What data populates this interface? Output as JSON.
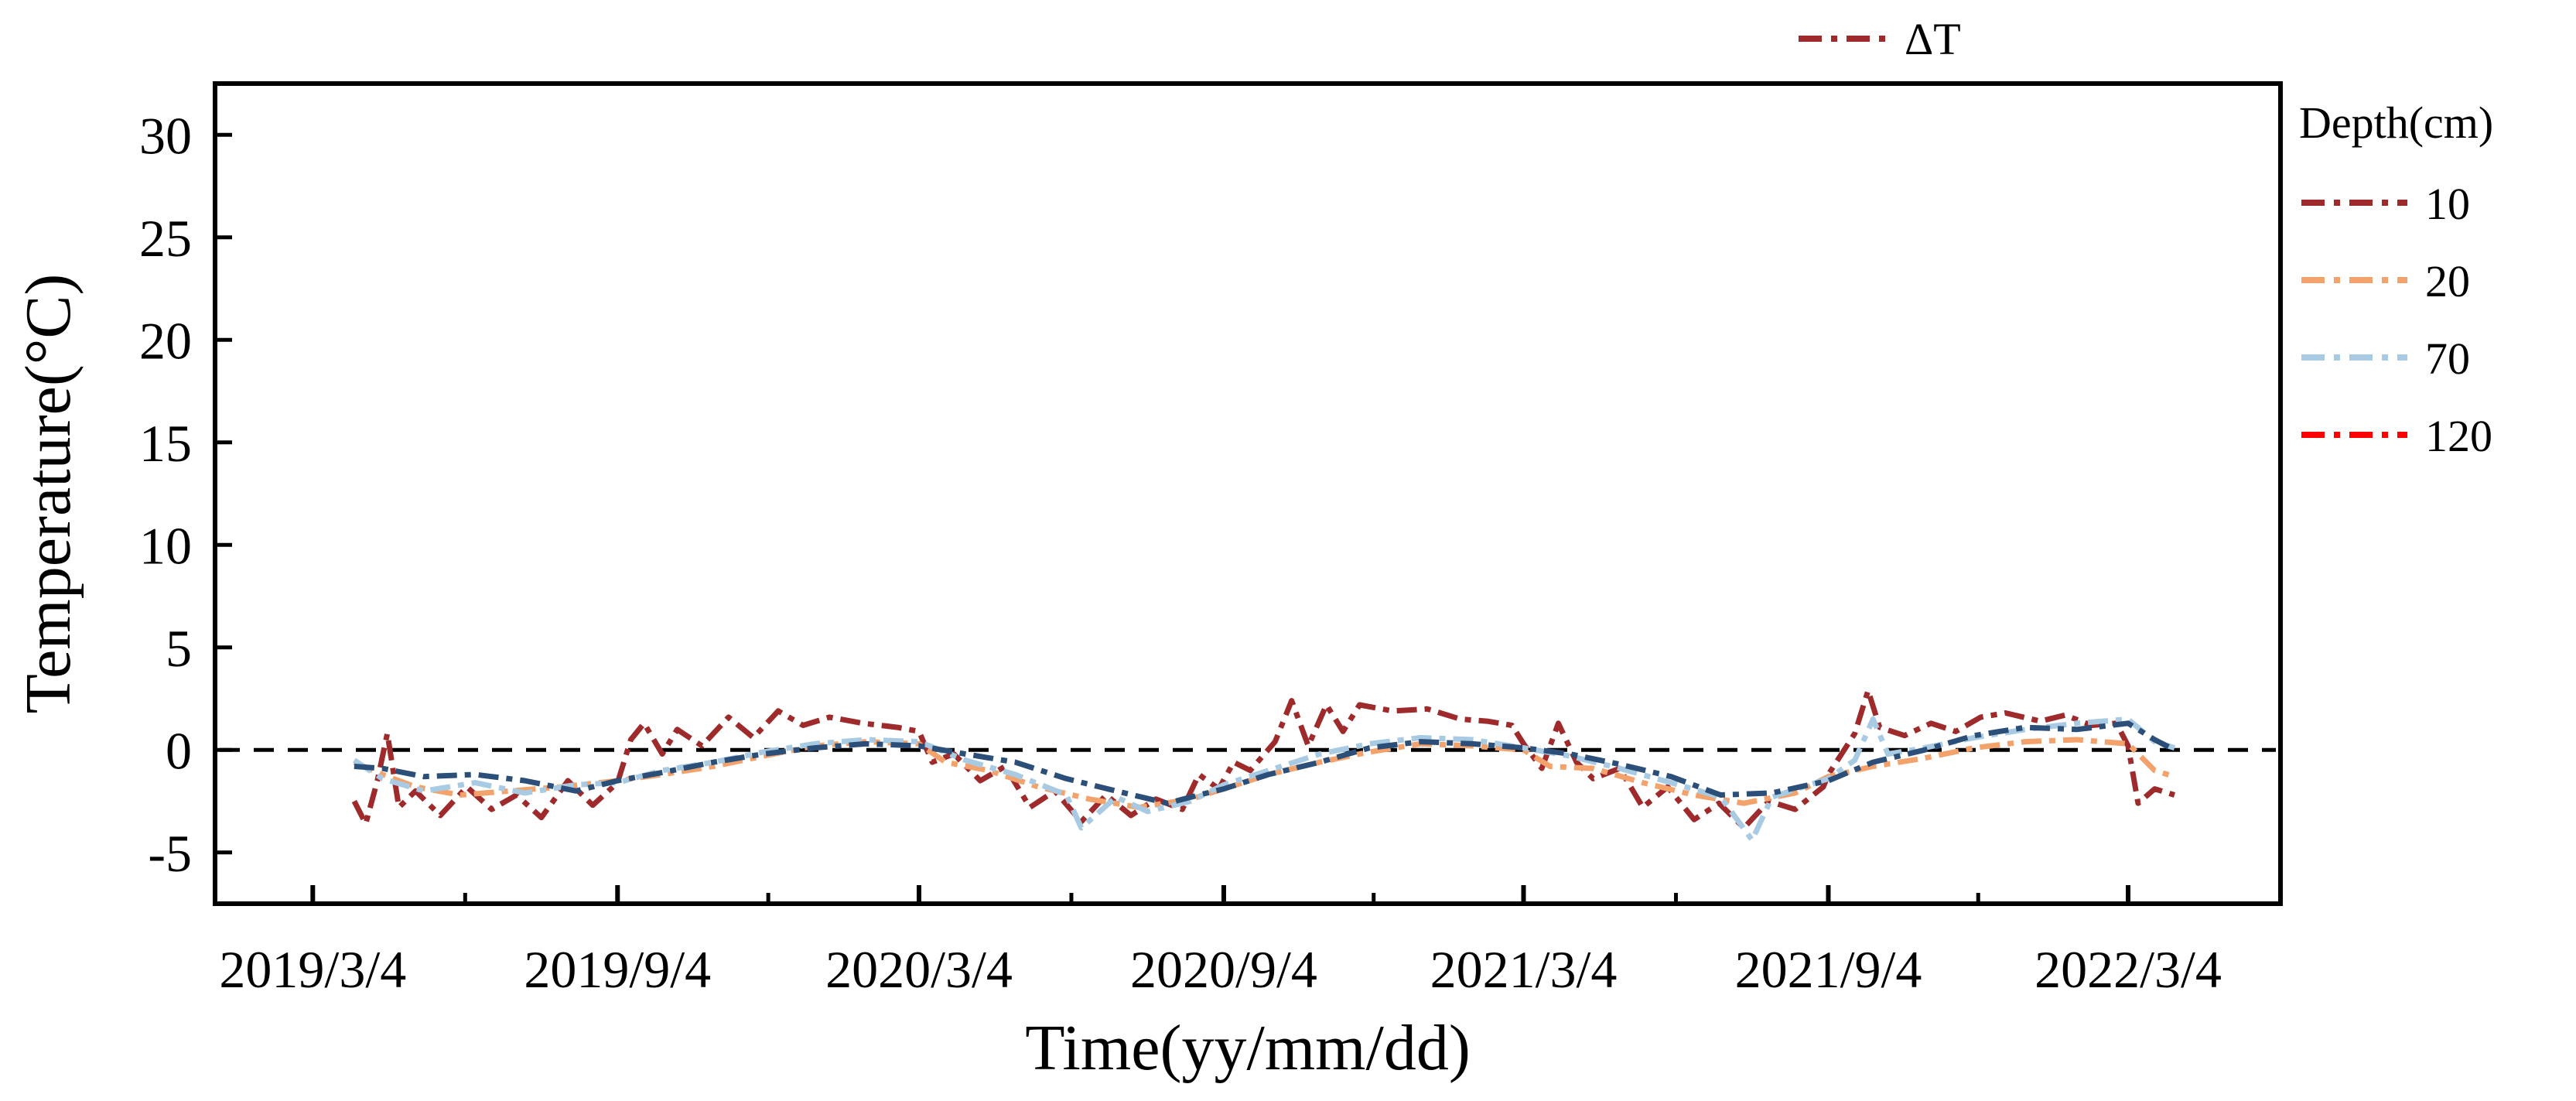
{
  "chart_data": {
    "type": "line",
    "xlabel": "Time(yy/mm/dd)",
    "ylabel": "Temperature(°C)",
    "ylim": [
      -7.5,
      32.5
    ],
    "xlim": [
      "2019/1/4",
      "2022/6/4"
    ],
    "x_ticks": [
      "2019/3/4",
      "2019/9/4",
      "2020/3/4",
      "2020/9/4",
      "2021/3/4",
      "2021/9/4",
      "2022/3/4"
    ],
    "y_ticks": [
      -5,
      0,
      5,
      10,
      15,
      20,
      25,
      30
    ],
    "reference_line": {
      "y": 0,
      "style": "dashed",
      "color": "#000000"
    },
    "legend_top": {
      "label": "ΔT",
      "color": "#9e2a2b",
      "placement": "top"
    },
    "legend_title": "Depth(cm)",
    "legend_placement": "right",
    "series": [
      {
        "name": "10",
        "color": "#9e2a2b",
        "style": "dash-dot",
        "points": [
          [
            "2019/3/29",
            -2.5
          ],
          [
            "2019/4/5",
            -3.6
          ],
          [
            "2019/4/12",
            -1.5
          ],
          [
            "2019/4/18",
            0.8
          ],
          [
            "2019/4/25",
            -2.8
          ],
          [
            "2019/5/5",
            -2.0
          ],
          [
            "2019/5/20",
            -3.2
          ],
          [
            "2019/6/5",
            -1.8
          ],
          [
            "2019/6/20",
            -2.9
          ],
          [
            "2019/7/5",
            -2.2
          ],
          [
            "2019/7/20",
            -3.3
          ],
          [
            "2019/8/5",
            -1.5
          ],
          [
            "2019/8/20",
            -2.7
          ],
          [
            "2019/9/4",
            -1.6
          ],
          [
            "2019/9/12",
            0.5
          ],
          [
            "2019/9/20",
            1.3
          ],
          [
            "2019/10/1",
            -0.2
          ],
          [
            "2019/10/10",
            1.0
          ],
          [
            "2019/10/25",
            0.2
          ],
          [
            "2019/11/10",
            1.6
          ],
          [
            "2019/11/25",
            0.6
          ],
          [
            "2019/12/10",
            1.9
          ],
          [
            "2019/12/25",
            1.2
          ],
          [
            "2020/1/10",
            1.6
          ],
          [
            "2020/1/30",
            1.3
          ],
          [
            "2020/2/20",
            1.1
          ],
          [
            "2020/3/4",
            0.9
          ],
          [
            "2020/3/12",
            -0.6
          ],
          [
            "2020/3/25",
            -0.2
          ],
          [
            "2020/4/10",
            -1.5
          ],
          [
            "2020/4/25",
            -0.8
          ],
          [
            "2020/5/10",
            -2.8
          ],
          [
            "2020/5/25",
            -2.0
          ],
          [
            "2020/6/10",
            -3.5
          ],
          [
            "2020/6/25",
            -2.2
          ],
          [
            "2020/7/10",
            -3.2
          ],
          [
            "2020/7/25",
            -2.4
          ],
          [
            "2020/8/10",
            -2.9
          ],
          [
            "2020/8/20",
            -1.2
          ],
          [
            "2020/9/1",
            -1.9
          ],
          [
            "2020/9/10",
            -0.6
          ],
          [
            "2020/9/20",
            -1.0
          ],
          [
            "2020/10/5",
            0.4
          ],
          [
            "2020/10/15",
            2.4
          ],
          [
            "2020/10/25",
            0.2
          ],
          [
            "2020/11/5",
            2.2
          ],
          [
            "2020/11/15",
            0.9
          ],
          [
            "2020/11/25",
            2.2
          ],
          [
            "2020/12/15",
            1.9
          ],
          [
            "2021/1/5",
            2.0
          ],
          [
            "2021/1/25",
            1.5
          ],
          [
            "2021/2/10",
            1.4
          ],
          [
            "2021/2/25",
            1.2
          ],
          [
            "2021/3/4",
            0.3
          ],
          [
            "2021/3/15",
            -0.9
          ],
          [
            "2021/3/25",
            1.3
          ],
          [
            "2021/4/5",
            -0.6
          ],
          [
            "2021/4/15",
            -1.4
          ],
          [
            "2021/5/1",
            -0.9
          ],
          [
            "2021/5/15",
            -2.8
          ],
          [
            "2021/5/30",
            -1.8
          ],
          [
            "2021/6/15",
            -3.4
          ],
          [
            "2021/6/30",
            -2.6
          ],
          [
            "2021/7/15",
            -3.8
          ],
          [
            "2021/7/30",
            -2.5
          ],
          [
            "2021/8/15",
            -2.9
          ],
          [
            "2021/9/1",
            -1.8
          ],
          [
            "2021/9/4",
            -1.2
          ],
          [
            "2021/9/12",
            -0.2
          ],
          [
            "2021/9/20",
            0.8
          ],
          [
            "2021/9/28",
            2.9
          ],
          [
            "2021/10/5",
            1.1
          ],
          [
            "2021/10/20",
            0.7
          ],
          [
            "2021/11/5",
            1.3
          ],
          [
            "2021/11/20",
            0.9
          ],
          [
            "2021/12/5",
            1.6
          ],
          [
            "2021/12/20",
            1.8
          ],
          [
            "2022/1/10",
            1.4
          ],
          [
            "2022/1/25",
            1.7
          ],
          [
            "2022/2/10",
            1.2
          ],
          [
            "2022/2/25",
            1.3
          ],
          [
            "2022/3/4",
            0.2
          ],
          [
            "2022/3/10",
            -2.6
          ],
          [
            "2022/3/20",
            -1.9
          ],
          [
            "2022/4/1",
            -2.2
          ]
        ]
      },
      {
        "name": "20",
        "color": "#f4a26b",
        "style": "dash-dot",
        "points": [
          [
            "2019/3/29",
            -0.6
          ],
          [
            "2019/4/15",
            -1.2
          ],
          [
            "2019/5/5",
            -1.8
          ],
          [
            "2019/6/1",
            -2.2
          ],
          [
            "2019/7/1",
            -2.0
          ],
          [
            "2019/8/1",
            -1.8
          ],
          [
            "2019/9/4",
            -1.5
          ],
          [
            "2019/10/1",
            -1.2
          ],
          [
            "2019/11/1",
            -0.8
          ],
          [
            "2019/12/1",
            -0.3
          ],
          [
            "2020/1/1",
            0.2
          ],
          [
            "2020/2/1",
            0.4
          ],
          [
            "2020/3/4",
            0.3
          ],
          [
            "2020/3/20",
            -0.6
          ],
          [
            "2020/4/15",
            -1.0
          ],
          [
            "2020/5/15",
            -1.8
          ],
          [
            "2020/6/15",
            -2.4
          ],
          [
            "2020/7/15",
            -2.8
          ],
          [
            "2020/8/15",
            -2.4
          ],
          [
            "2020/9/4",
            -1.9
          ],
          [
            "2020/10/1",
            -1.2
          ],
          [
            "2020/11/1",
            -0.6
          ],
          [
            "2020/12/1",
            -0.1
          ],
          [
            "2021/1/1",
            0.3
          ],
          [
            "2021/2/1",
            0.2
          ],
          [
            "2021/3/4",
            0.0
          ],
          [
            "2021/3/20",
            -0.8
          ],
          [
            "2021/4/15",
            -0.9
          ],
          [
            "2021/5/15",
            -1.6
          ],
          [
            "2021/6/15",
            -2.2
          ],
          [
            "2021/7/15",
            -2.6
          ],
          [
            "2021/8/15",
            -2.1
          ],
          [
            "2021/9/4",
            -1.3
          ],
          [
            "2021/10/1",
            -0.8
          ],
          [
            "2021/11/1",
            -0.4
          ],
          [
            "2021/12/1",
            0.1
          ],
          [
            "2022/1/1",
            0.4
          ],
          [
            "2022/2/1",
            0.5
          ],
          [
            "2022/3/4",
            0.3
          ],
          [
            "2022/3/20",
            -1.0
          ],
          [
            "2022/4/1",
            -1.3
          ]
        ]
      },
      {
        "name": "70",
        "color": "#a8cbe3",
        "style": "dash-dot",
        "points": [
          [
            "2019/3/29",
            -0.5
          ],
          [
            "2019/4/15",
            -1.4
          ],
          [
            "2019/5/10",
            -2.0
          ],
          [
            "2019/6/10",
            -1.6
          ],
          [
            "2019/7/10",
            -2.1
          ],
          [
            "2019/8/10",
            -1.7
          ],
          [
            "2019/9/4",
            -1.6
          ],
          [
            "2019/10/1",
            -1.0
          ],
          [
            "2019/11/1",
            -0.6
          ],
          [
            "2019/12/1",
            -0.1
          ],
          [
            "2020/1/1",
            0.3
          ],
          [
            "2020/2/1",
            0.5
          ],
          [
            "2020/3/4",
            0.4
          ],
          [
            "2020/4/1",
            -0.5
          ],
          [
            "2020/5/1",
            -1.2
          ],
          [
            "2020/6/1",
            -2.2
          ],
          [
            "2020/6/10",
            -3.8
          ],
          [
            "2020/7/1",
            -2.3
          ],
          [
            "2020/7/20",
            -3.0
          ],
          [
            "2020/8/15",
            -2.5
          ],
          [
            "2020/9/4",
            -1.7
          ],
          [
            "2020/10/1",
            -1.0
          ],
          [
            "2020/11/1",
            -0.2
          ],
          [
            "2020/12/1",
            0.3
          ],
          [
            "2021/1/1",
            0.6
          ],
          [
            "2021/2/1",
            0.5
          ],
          [
            "2021/3/4",
            0.1
          ],
          [
            "2021/4/1",
            -0.3
          ],
          [
            "2021/5/1",
            -0.9
          ],
          [
            "2021/6/1",
            -1.6
          ],
          [
            "2021/7/1",
            -2.3
          ],
          [
            "2021/7/20",
            -4.4
          ],
          [
            "2021/8/1",
            -2.3
          ],
          [
            "2021/9/4",
            -1.4
          ],
          [
            "2021/9/20",
            -0.5
          ],
          [
            "2021/10/1",
            1.5
          ],
          [
            "2021/10/10",
            -0.2
          ],
          [
            "2021/11/1",
            0.1
          ],
          [
            "2021/12/1",
            0.6
          ],
          [
            "2022/1/1",
            1.0
          ],
          [
            "2022/2/1",
            1.3
          ],
          [
            "2022/3/4",
            1.5
          ],
          [
            "2022/3/20",
            0.4
          ],
          [
            "2022/4/1",
            0.1
          ]
        ]
      },
      {
        "name": "120",
        "color": "#ff0000",
        "style": "dash-dot",
        "points": []
      },
      {
        "name": "",
        "color": "#2b4f78",
        "style": "dash-dot",
        "points": [
          [
            "2019/3/29",
            -0.8
          ],
          [
            "2019/4/15",
            -0.9
          ],
          [
            "2019/5/10",
            -1.3
          ],
          [
            "2019/6/10",
            -1.2
          ],
          [
            "2019/7/10",
            -1.5
          ],
          [
            "2019/8/10",
            -2.0
          ],
          [
            "2019/9/4",
            -1.5
          ],
          [
            "2019/10/1",
            -1.1
          ],
          [
            "2019/11/1",
            -0.6
          ],
          [
            "2019/12/1",
            -0.2
          ],
          [
            "2020/1/1",
            0.1
          ],
          [
            "2020/2/1",
            0.3
          ],
          [
            "2020/3/4",
            0.2
          ],
          [
            "2020/4/1",
            -0.2
          ],
          [
            "2020/5/1",
            -0.6
          ],
          [
            "2020/6/1",
            -1.4
          ],
          [
            "2020/7/1",
            -2.0
          ],
          [
            "2020/8/1",
            -2.6
          ],
          [
            "2020/8/20",
            -2.2
          ],
          [
            "2020/9/4",
            -1.9
          ],
          [
            "2020/10/1",
            -1.2
          ],
          [
            "2020/11/1",
            -0.6
          ],
          [
            "2020/12/1",
            0.1
          ],
          [
            "2021/1/1",
            0.4
          ],
          [
            "2021/2/1",
            0.3
          ],
          [
            "2021/3/4",
            0.1
          ],
          [
            "2021/4/1",
            -0.2
          ],
          [
            "2021/5/1",
            -0.7
          ],
          [
            "2021/6/1",
            -1.3
          ],
          [
            "2021/7/1",
            -2.2
          ],
          [
            "2021/8/1",
            -2.1
          ],
          [
            "2021/9/4",
            -1.5
          ],
          [
            "2021/10/1",
            -0.6
          ],
          [
            "2021/11/1",
            0.0
          ],
          [
            "2021/12/1",
            0.7
          ],
          [
            "2022/1/1",
            1.1
          ],
          [
            "2022/2/1",
            1.0
          ],
          [
            "2022/3/4",
            1.3
          ],
          [
            "2022/3/20",
            0.5
          ],
          [
            "2022/4/1",
            0.0
          ]
        ]
      }
    ]
  }
}
